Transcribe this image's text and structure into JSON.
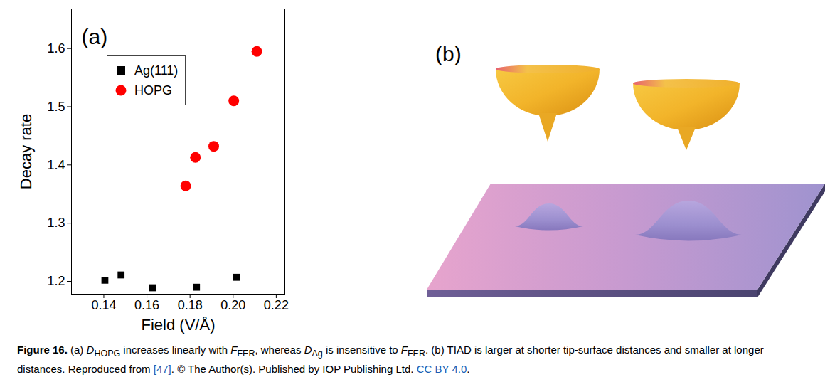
{
  "chart_data": {
    "type": "scatter",
    "panel_label": "(a)",
    "x_label": "Field (V/Å)",
    "y_label": "Decay rate",
    "xlim": [
      0.125,
      0.224
    ],
    "ylim": [
      1.178,
      1.668
    ],
    "xticks": [
      0.14,
      0.16,
      0.18,
      {
        "value": 0.2,
        "label": "0.20"
      },
      0.22
    ],
    "yticks": [
      1.2,
      1.3,
      1.4,
      1.5,
      1.6
    ],
    "legend": "upper left",
    "series": [
      {
        "name": "Ag(111)",
        "color": "#000000",
        "marker": "square",
        "x": [
          0.1405,
          0.148,
          0.1625,
          0.183,
          0.2015
        ],
        "values": [
          1.202,
          1.211,
          1.189,
          1.19,
          1.207
        ]
      },
      {
        "name": "HOPG",
        "color": "#ff0000",
        "marker": "circle",
        "x": [
          0.178,
          0.1825,
          0.191,
          0.2003,
          0.211
        ],
        "values": [
          1.364,
          1.413,
          1.432,
          1.51,
          1.595
        ]
      }
    ]
  },
  "illustration": {
    "panel_label": "(b)"
  },
  "caption": [
    {
      "text": "Figure 16.",
      "style": "bold"
    },
    {
      "text": " (a) "
    },
    {
      "text": "D",
      "style": "italic"
    },
    {
      "text": "HOPG",
      "style": "sub"
    },
    {
      "text": " increases linearly with "
    },
    {
      "text": "F",
      "style": "italic"
    },
    {
      "text": "FER",
      "style": "sub"
    },
    {
      "text": ", whereas "
    },
    {
      "text": "D",
      "style": "italic"
    },
    {
      "text": "Ag",
      "style": "sub"
    },
    {
      "text": " is insensitive to "
    },
    {
      "text": "F",
      "style": "italic"
    },
    {
      "text": "FER",
      "style": "sub"
    },
    {
      "text": ". (b) TIAD is larger at shorter tip-surface distances and smaller at longer distances. Reproduced from "
    },
    {
      "text": "[47]",
      "style": "link"
    },
    {
      "text": ". © The Author(s). Published by IOP Publishing Ltd. "
    },
    {
      "text": "CC BY 4.0",
      "style": "link"
    },
    {
      "text": "."
    }
  ]
}
